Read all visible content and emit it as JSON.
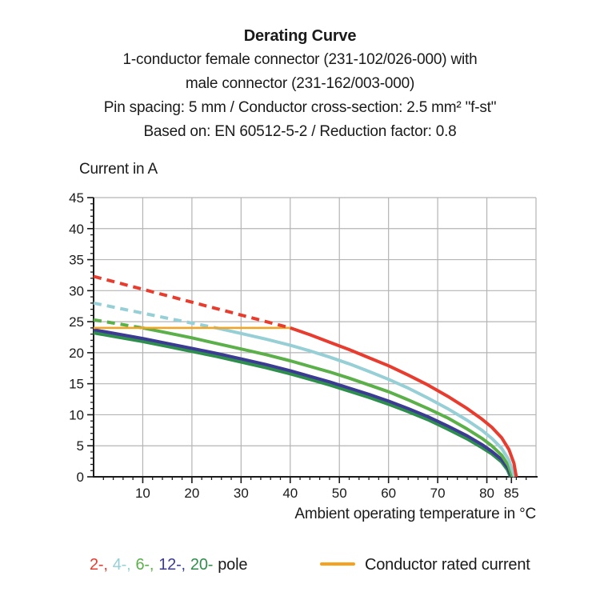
{
  "title": {
    "lines": [
      "Derating Curve",
      "1-conductor female connector (231-102/026-000) with",
      "male connector (231-162/003-000)",
      "Pin spacing: 5 mm / Conductor cross-section: 2.5 mm² \"f-st\"",
      "Based on: EN 60512-5-2 / Reduction factor: 0.8"
    ]
  },
  "chart_data": {
    "type": "line",
    "title": "Derating Curve",
    "xlabel": "Ambient operating temperature in °C",
    "ylabel": "Current in A",
    "xlim": [
      0,
      90
    ],
    "ylim": [
      0,
      45
    ],
    "x_major_ticks": [
      10,
      20,
      30,
      40,
      50,
      60,
      70,
      80,
      85
    ],
    "x_gridlines": [
      10,
      20,
      30,
      40,
      50,
      60,
      70,
      80
    ],
    "x_minor_step": 2,
    "y_major_ticks": [
      0,
      5,
      10,
      15,
      20,
      25,
      30,
      35,
      40,
      45
    ],
    "y_gridlines": [
      5,
      10,
      15,
      20,
      25,
      30,
      35,
      40,
      45
    ],
    "y_minor_step": 1,
    "grid": true,
    "grid_color": "#b4b4b4",
    "axis_color": "#1a1a1a",
    "legend_position": "bottom",
    "series": [
      {
        "name": "2-pole",
        "color": "#e73c2e",
        "width": 4,
        "zorder": 6,
        "segments": [
          {
            "style": "dashed",
            "points": [
              [
                0,
                32.3
              ],
              [
                40,
                24
              ]
            ]
          },
          {
            "style": "solid",
            "points": [
              [
                40,
                24
              ],
              [
                44,
                22.9
              ],
              [
                48,
                21.7
              ],
              [
                52,
                20.5
              ],
              [
                56,
                19.2
              ],
              [
                60,
                17.9
              ],
              [
                64,
                16.4
              ],
              [
                68,
                14.8
              ],
              [
                72,
                13.0
              ],
              [
                76,
                11.0
              ],
              [
                79,
                9.3
              ],
              [
                81,
                8.0
              ],
              [
                83,
                6.3
              ],
              [
                84.5,
                4.4
              ],
              [
                85.5,
                2.2
              ],
              [
                86,
                0
              ]
            ]
          }
        ]
      },
      {
        "name": "4-pole",
        "color": "#96cfd5",
        "width": 4,
        "zorder": 4,
        "segments": [
          {
            "style": "dashed",
            "points": [
              [
                0,
                28
              ],
              [
                8,
                26.7
              ],
              [
                16,
                25.4
              ],
              [
                25,
                24
              ]
            ]
          },
          {
            "style": "solid",
            "points": [
              [
                25,
                24
              ],
              [
                30,
                23.1
              ],
              [
                35,
                22.2
              ],
              [
                40,
                21.2
              ],
              [
                44,
                20.3
              ],
              [
                48,
                19.3
              ],
              [
                52,
                18.2
              ],
              [
                56,
                17.0
              ],
              [
                60,
                15.7
              ],
              [
                64,
                14.3
              ],
              [
                68,
                12.7
              ],
              [
                72,
                11.0
              ],
              [
                76,
                9.1
              ],
              [
                79,
                7.5
              ],
              [
                81,
                6.2
              ],
              [
                83,
                4.6
              ],
              [
                84.5,
                2.7
              ],
              [
                85.6,
                0
              ]
            ]
          }
        ]
      },
      {
        "name": "6-pole",
        "color": "#5bb04a",
        "width": 4,
        "zorder": 3,
        "segments": [
          {
            "style": "dashed",
            "points": [
              [
                0,
                25.3
              ],
              [
                5,
                24.65
              ],
              [
                10,
                24
              ]
            ]
          },
          {
            "style": "solid",
            "points": [
              [
                10,
                24
              ],
              [
                15,
                23.2
              ],
              [
                20,
                22.4
              ],
              [
                25,
                21.5
              ],
              [
                30,
                20.6
              ],
              [
                35,
                19.7
              ],
              [
                40,
                18.7
              ],
              [
                44,
                17.8
              ],
              [
                48,
                16.9
              ],
              [
                52,
                15.9
              ],
              [
                56,
                14.8
              ],
              [
                60,
                13.7
              ],
              [
                64,
                12.4
              ],
              [
                68,
                11.0
              ],
              [
                72,
                9.5
              ],
              [
                76,
                7.7
              ],
              [
                79,
                6.2
              ],
              [
                81,
                5.0
              ],
              [
                83,
                3.5
              ],
              [
                84.4,
                1.8
              ],
              [
                85.2,
                0
              ]
            ]
          }
        ]
      },
      {
        "name": "12-pole",
        "color": "#3c3b94",
        "width": 4,
        "zorder": 2,
        "segments": [
          {
            "style": "solid",
            "points": [
              [
                0,
                23.7
              ],
              [
                5,
                23.0
              ],
              [
                10,
                22.3
              ],
              [
                15,
                21.5
              ],
              [
                20,
                20.7
              ],
              [
                25,
                19.9
              ],
              [
                30,
                19.0
              ],
              [
                35,
                18.1
              ],
              [
                40,
                17.1
              ],
              [
                44,
                16.2
              ],
              [
                48,
                15.3
              ],
              [
                52,
                14.3
              ],
              [
                56,
                13.3
              ],
              [
                60,
                12.2
              ],
              [
                64,
                11.0
              ],
              [
                68,
                9.7
              ],
              [
                72,
                8.2
              ],
              [
                76,
                6.6
              ],
              [
                79,
                5.2
              ],
              [
                81,
                4.1
              ],
              [
                83,
                2.8
              ],
              [
                84.3,
                1.4
              ],
              [
                85,
                0
              ]
            ]
          }
        ]
      },
      {
        "name": "20-pole",
        "color": "#2e8f4c",
        "width": 4,
        "zorder": 1,
        "segments": [
          {
            "style": "solid",
            "points": [
              [
                0,
                23.2
              ],
              [
                5,
                22.5
              ],
              [
                10,
                21.8
              ],
              [
                15,
                21.0
              ],
              [
                20,
                20.2
              ],
              [
                25,
                19.4
              ],
              [
                30,
                18.5
              ],
              [
                35,
                17.6
              ],
              [
                40,
                16.6
              ],
              [
                44,
                15.7
              ],
              [
                48,
                14.8
              ],
              [
                52,
                13.8
              ],
              [
                56,
                12.8
              ],
              [
                60,
                11.7
              ],
              [
                64,
                10.5
              ],
              [
                68,
                9.2
              ],
              [
                72,
                7.7
              ],
              [
                76,
                6.1
              ],
              [
                79,
                4.7
              ],
              [
                81,
                3.7
              ],
              [
                83,
                2.4
              ],
              [
                84.2,
                1.1
              ],
              [
                84.8,
                0
              ]
            ]
          }
        ]
      },
      {
        "name": "Conductor rated current",
        "color": "#f6a21e",
        "width": 2.5,
        "zorder": 5,
        "segments": [
          {
            "style": "solid",
            "points": [
              [
                0,
                24
              ],
              [
                40,
                24
              ]
            ]
          }
        ]
      }
    ]
  },
  "legend": {
    "poles": [
      {
        "label": "2-,",
        "color": "#e73c2e"
      },
      {
        "label": "4-,",
        "color": "#96cfd5"
      },
      {
        "label": "6-,",
        "color": "#5bb04a"
      },
      {
        "label": "12-,",
        "color": "#3c3b94"
      },
      {
        "label": "20-",
        "color": "#2e8f4c"
      }
    ],
    "poles_suffix": "pole",
    "rated": {
      "label": "Conductor rated current",
      "color": "#f6a21e"
    }
  }
}
